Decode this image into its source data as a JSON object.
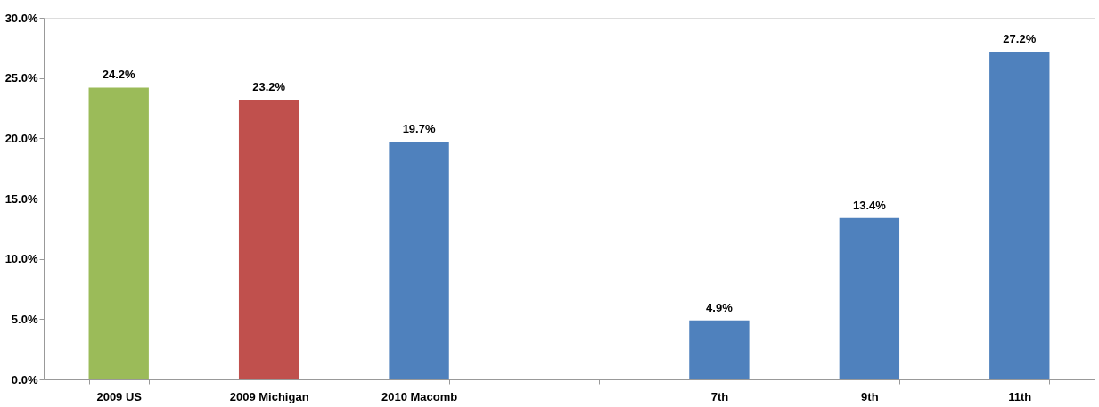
{
  "chart_data": {
    "type": "bar",
    "categories": [
      "2009 US",
      "2009 Michigan",
      "2010 Macomb",
      null,
      "7th",
      "9th",
      "11th"
    ],
    "values": [
      24.2,
      23.2,
      19.7,
      null,
      4.9,
      13.4,
      27.2
    ],
    "colors": [
      "#9bbb59",
      "#c0504d",
      "#4f81bd",
      "#4f81bd",
      "#4f81bd",
      "#4f81bd",
      "#4f81bd"
    ],
    "value_labels": [
      "24.2%",
      "23.2%",
      "19.7%",
      null,
      "4.9%",
      "13.4%",
      "27.2%"
    ],
    "ylim": [
      0,
      30
    ],
    "yticks": [
      {
        "value": 0,
        "label": "0.0%"
      },
      {
        "value": 5,
        "label": "5.0%"
      },
      {
        "value": 10,
        "label": "10.0%"
      },
      {
        "value": 15,
        "label": "15.0%"
      },
      {
        "value": 20,
        "label": "20.0%"
      },
      {
        "value": 25,
        "label": "25.0%"
      },
      {
        "value": 30,
        "label": "30.0%"
      }
    ],
    "grid": false
  }
}
